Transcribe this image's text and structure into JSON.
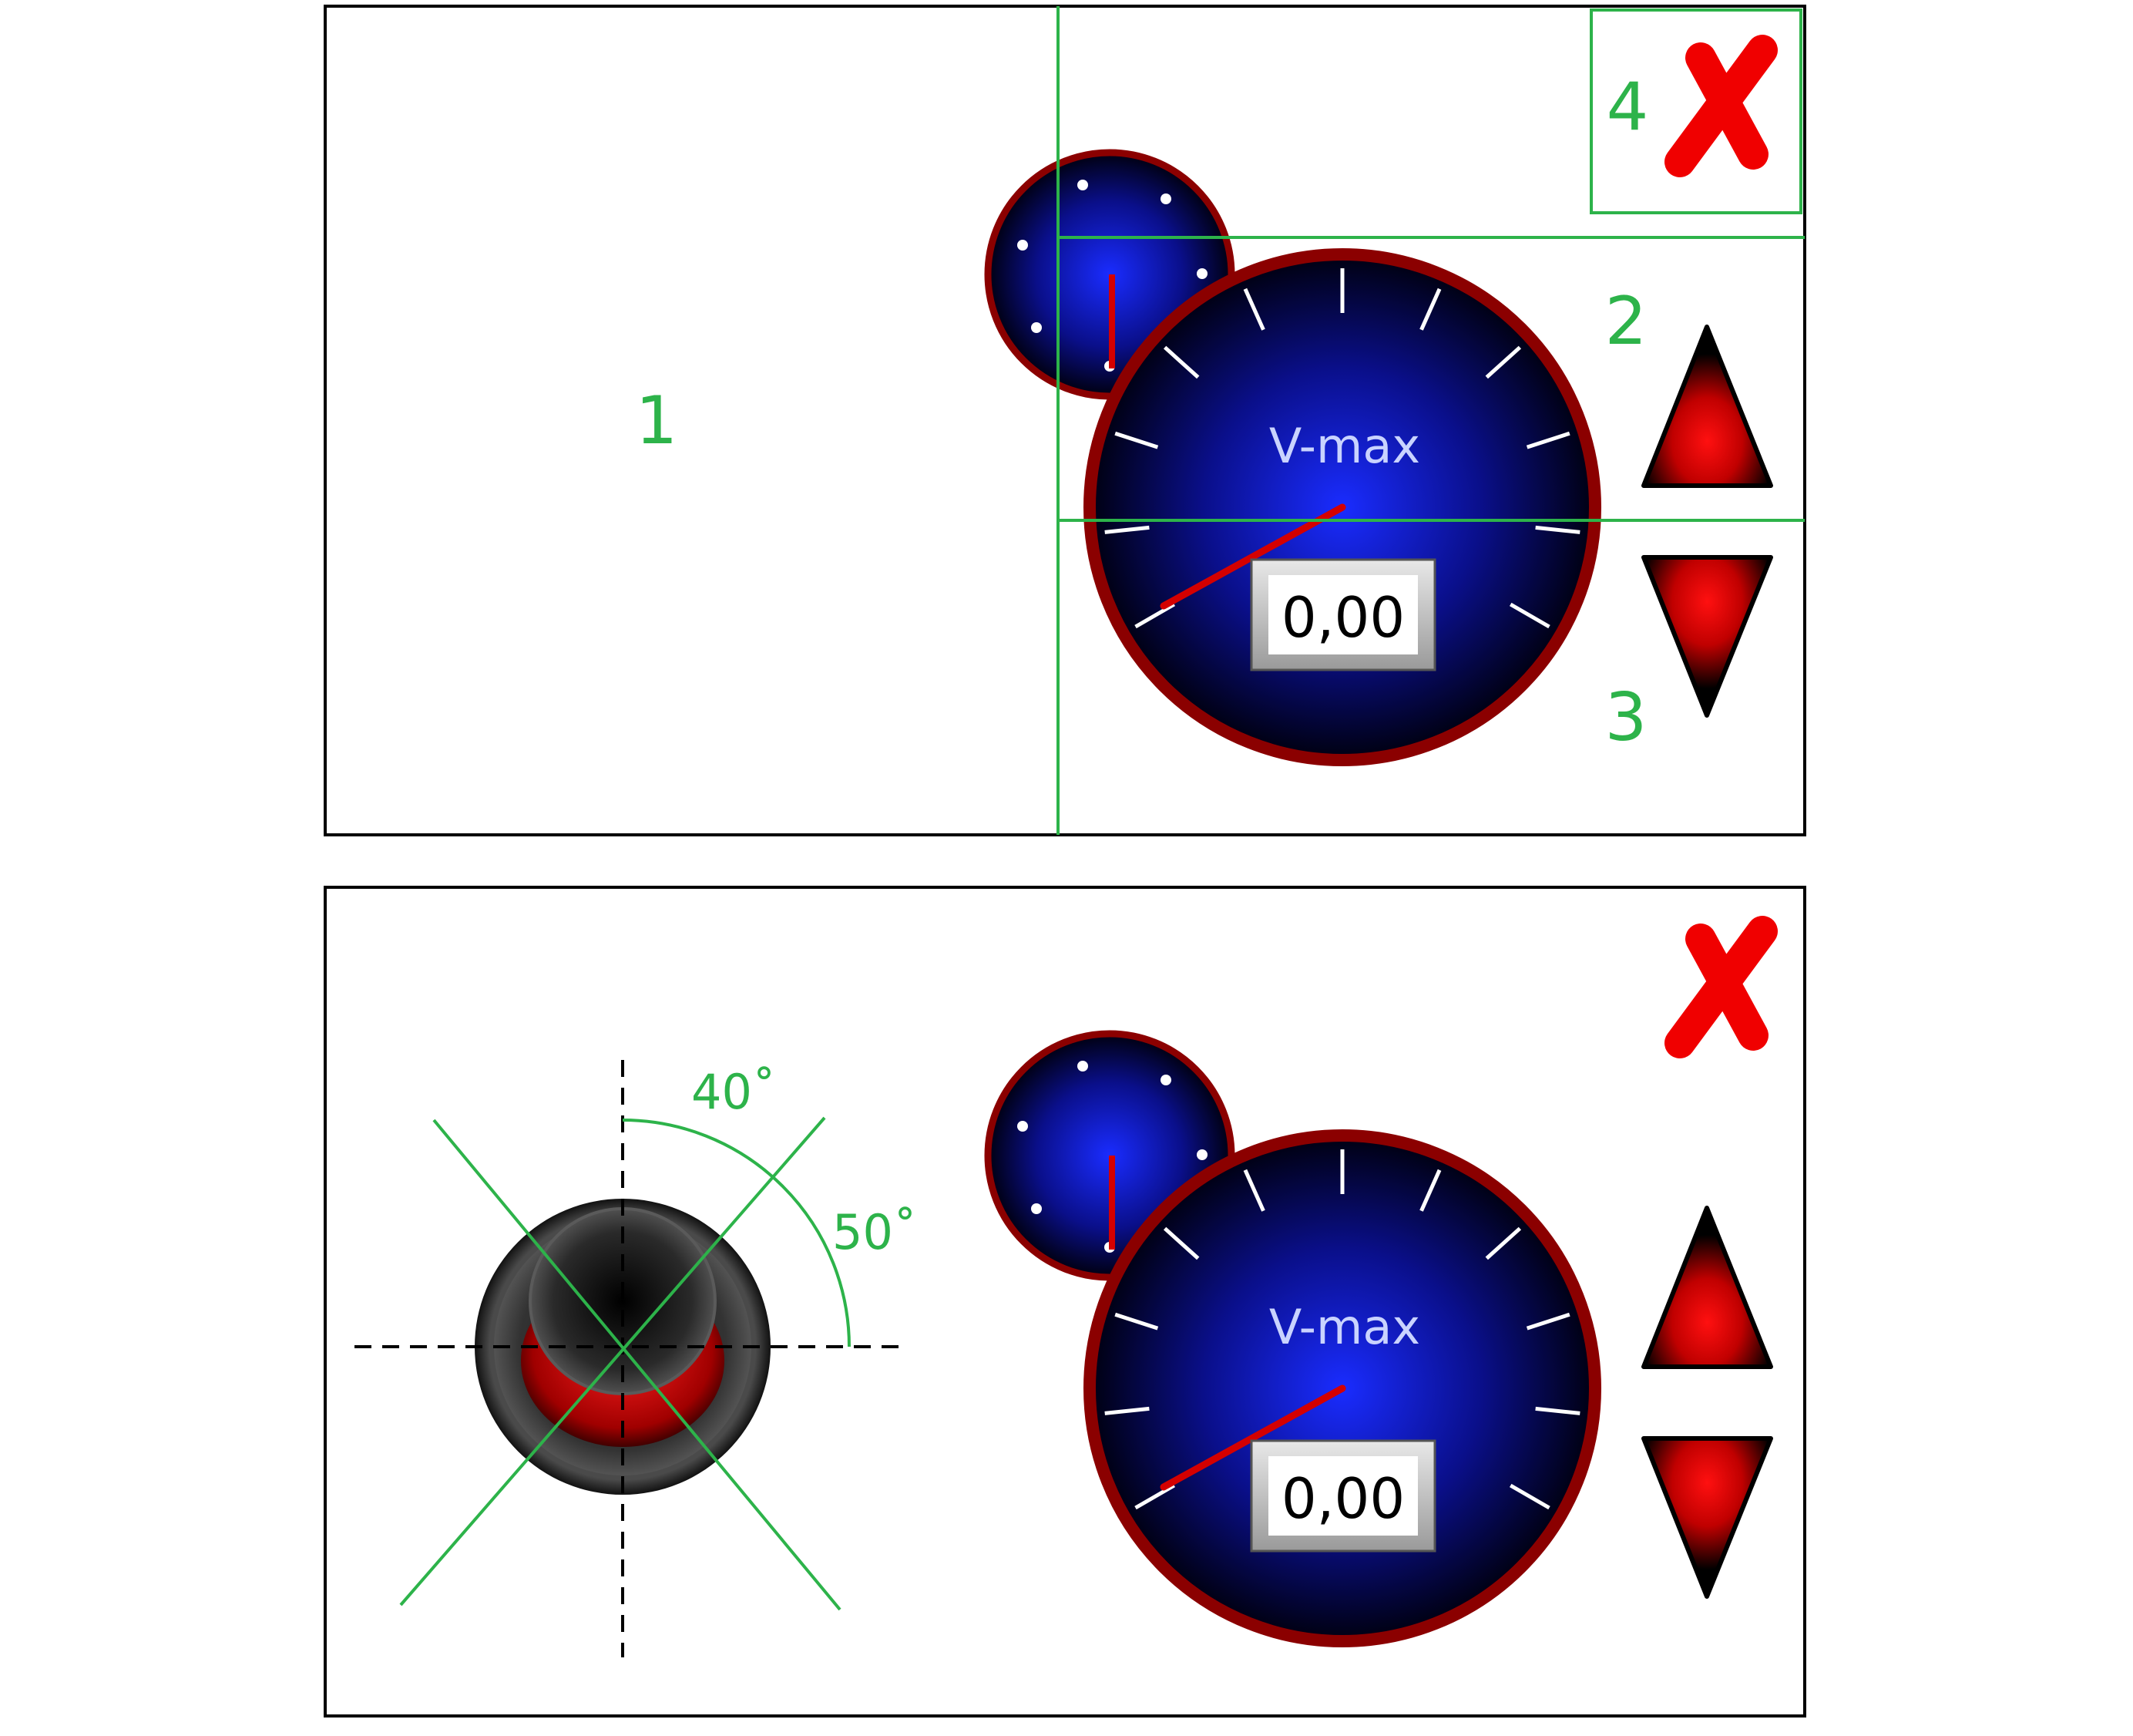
{
  "colors": {
    "zone_line": "#2db34a",
    "frame": "#000000",
    "bezel": "#8b0000",
    "dial_core": "#1a2cff",
    "dial_edge": "#000010",
    "needle": "#d40000",
    "close": "#f00000",
    "arrow_core": "#ff1010",
    "arrow_edge": "#000000",
    "label_text": "#c9d3ff"
  },
  "zone_labels": {
    "z1": "1",
    "z2": "2",
    "z3": "3",
    "z4": "4"
  },
  "gauge": {
    "title": "V-max",
    "readout": "0,00",
    "needle_value": 0.11
  },
  "mini_gauge": {
    "needle_value": 0.5
  },
  "joystick": {
    "angle_a": "40˚",
    "angle_b": "50˚"
  },
  "icons": {
    "close": "close-x-icon",
    "up": "triangle-up-icon",
    "down": "triangle-down-icon",
    "joystick": "joystick-knob-icon"
  }
}
